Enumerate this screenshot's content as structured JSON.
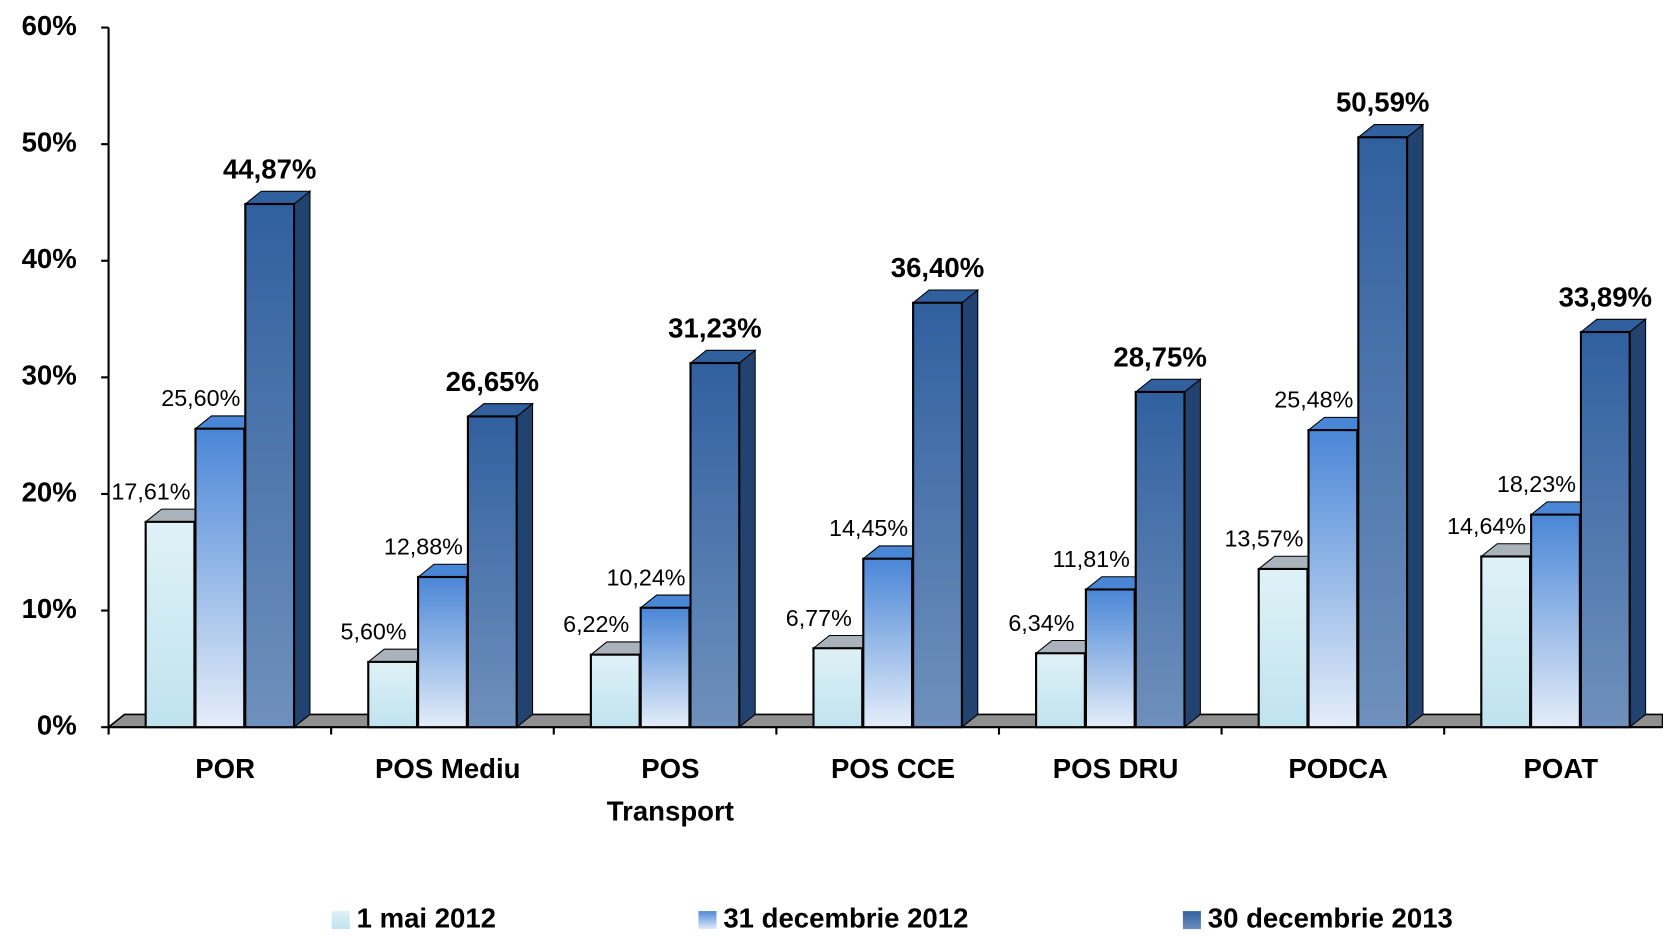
{
  "chart_data": {
    "type": "bar3d",
    "categories": [
      "POR",
      "POS Mediu",
      "POS Transport",
      "POS CCE",
      "POS DRU",
      "PODCA",
      "POAT"
    ],
    "series": [
      {
        "name": "1 mai 2012",
        "color": "#bfe3ee",
        "values": [
          17.61,
          5.6,
          6.22,
          6.77,
          6.34,
          13.57,
          14.64
        ],
        "value_labels": [
          "17,61%",
          "5,60%",
          "6,22%",
          "6,77%",
          "6,34%",
          "13,57%",
          "14,64%"
        ]
      },
      {
        "name": "31 decembrie 2012",
        "color": "#4a86d6",
        "values": [
          25.6,
          12.88,
          10.24,
          14.45,
          11.81,
          25.48,
          18.23
        ],
        "value_labels": [
          "25,60%",
          "12,88%",
          "10,24%",
          "14,45%",
          "11,81%",
          "25,48%",
          "18,23%"
        ]
      },
      {
        "name": "30 decembrie 2013",
        "color": "#31609f",
        "values": [
          44.87,
          26.65,
          31.23,
          36.4,
          28.75,
          50.59,
          33.89
        ],
        "value_labels": [
          "44,87%",
          "26,65%",
          "31,23%",
          "36,40%",
          "28,75%",
          "50,59%",
          "33,89%"
        ]
      }
    ],
    "ylim": [
      0,
      60
    ],
    "yticks": [
      {
        "value": 0,
        "label": "0%"
      },
      {
        "value": 10,
        "label": "10%"
      },
      {
        "value": 20,
        "label": "20%"
      },
      {
        "value": 30,
        "label": "30%"
      },
      {
        "value": 40,
        "label": "40%"
      },
      {
        "value": 50,
        "label": "50%"
      },
      {
        "value": 60,
        "label": "60%"
      }
    ],
    "legend": "bottom"
  }
}
